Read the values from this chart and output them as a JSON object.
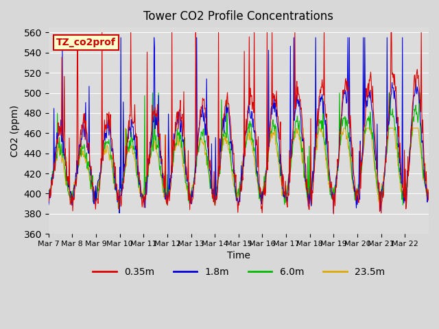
{
  "title": "Tower CO2 Profile Concentrations",
  "xlabel": "Time",
  "ylabel": "CO2 (ppm)",
  "ylim": [
    360,
    565
  ],
  "yticks": [
    360,
    380,
    400,
    420,
    440,
    460,
    480,
    500,
    520,
    540,
    560
  ],
  "xtick_labels": [
    "Mar 7",
    "Mar 8",
    "Mar 9",
    "Mar 10",
    "Mar 11",
    "Mar 12",
    "Mar 13",
    "Mar 14",
    "Mar 15",
    "Mar 16",
    "Mar 17",
    "Mar 18",
    "Mar 19",
    "Mar 20",
    "Mar 21",
    "Mar 22"
  ],
  "legend_labels": [
    "0.35m",
    "1.8m",
    "6.0m",
    "23.5m"
  ],
  "line_colors": [
    "#dd0000",
    "#0000dd",
    "#00bb00",
    "#ddaa00"
  ],
  "annotation_text": "TZ_co2prof",
  "annotation_facecolor": "#ffffcc",
  "annotation_edgecolor": "#cc0000",
  "n_days": 16,
  "n_pts_per_day": 48
}
